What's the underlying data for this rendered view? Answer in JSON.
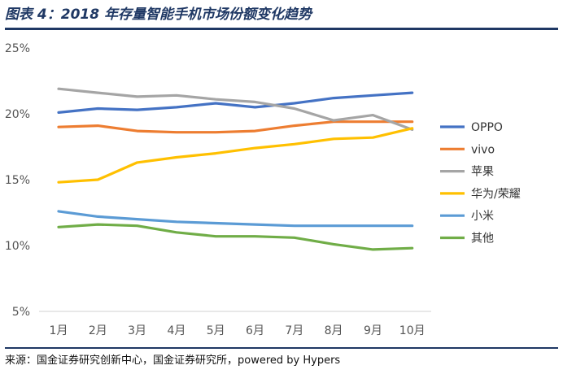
{
  "header": {
    "title": "图表 4：2018 年存量智能手机市场份额变化趋势"
  },
  "footer": {
    "source": "来源：国金证券研究创新中心，国金证券研究所，powered by Hypers"
  },
  "chart_data": {
    "type": "line",
    "categories": [
      "1月",
      "2月",
      "3月",
      "4月",
      "5月",
      "6月",
      "7月",
      "8月",
      "9月",
      "10月"
    ],
    "y_ticks": [
      "5%",
      "10%",
      "15%",
      "20%",
      "25%"
    ],
    "ylim": [
      5,
      25
    ],
    "legend_position": "right",
    "grid": false,
    "series": [
      {
        "name": "OPPO",
        "color": "#4472c4",
        "values": [
          20.1,
          20.4,
          20.3,
          20.5,
          20.8,
          20.5,
          20.8,
          21.2,
          21.4,
          21.6
        ]
      },
      {
        "name": "vivo",
        "color": "#ed7d31",
        "values": [
          19.0,
          19.1,
          18.7,
          18.6,
          18.6,
          18.7,
          19.1,
          19.4,
          19.4,
          19.4
        ]
      },
      {
        "name": "苹果",
        "color": "#a5a5a5",
        "values": [
          21.9,
          21.6,
          21.3,
          21.4,
          21.1,
          20.9,
          20.4,
          19.5,
          19.9,
          18.8
        ]
      },
      {
        "name": "华为/荣耀",
        "color": "#ffc000",
        "values": [
          14.8,
          15.0,
          16.3,
          16.7,
          17.0,
          17.4,
          17.7,
          18.1,
          18.2,
          18.9
        ]
      },
      {
        "name": "小米",
        "color": "#5b9bd5",
        "values": [
          12.6,
          12.2,
          12.0,
          11.8,
          11.7,
          11.6,
          11.5,
          11.5,
          11.5,
          11.5
        ]
      },
      {
        "name": "其他",
        "color": "#70ad47",
        "values": [
          11.4,
          11.6,
          11.5,
          11.0,
          10.7,
          10.7,
          10.6,
          10.1,
          9.7,
          9.8
        ]
      }
    ]
  }
}
